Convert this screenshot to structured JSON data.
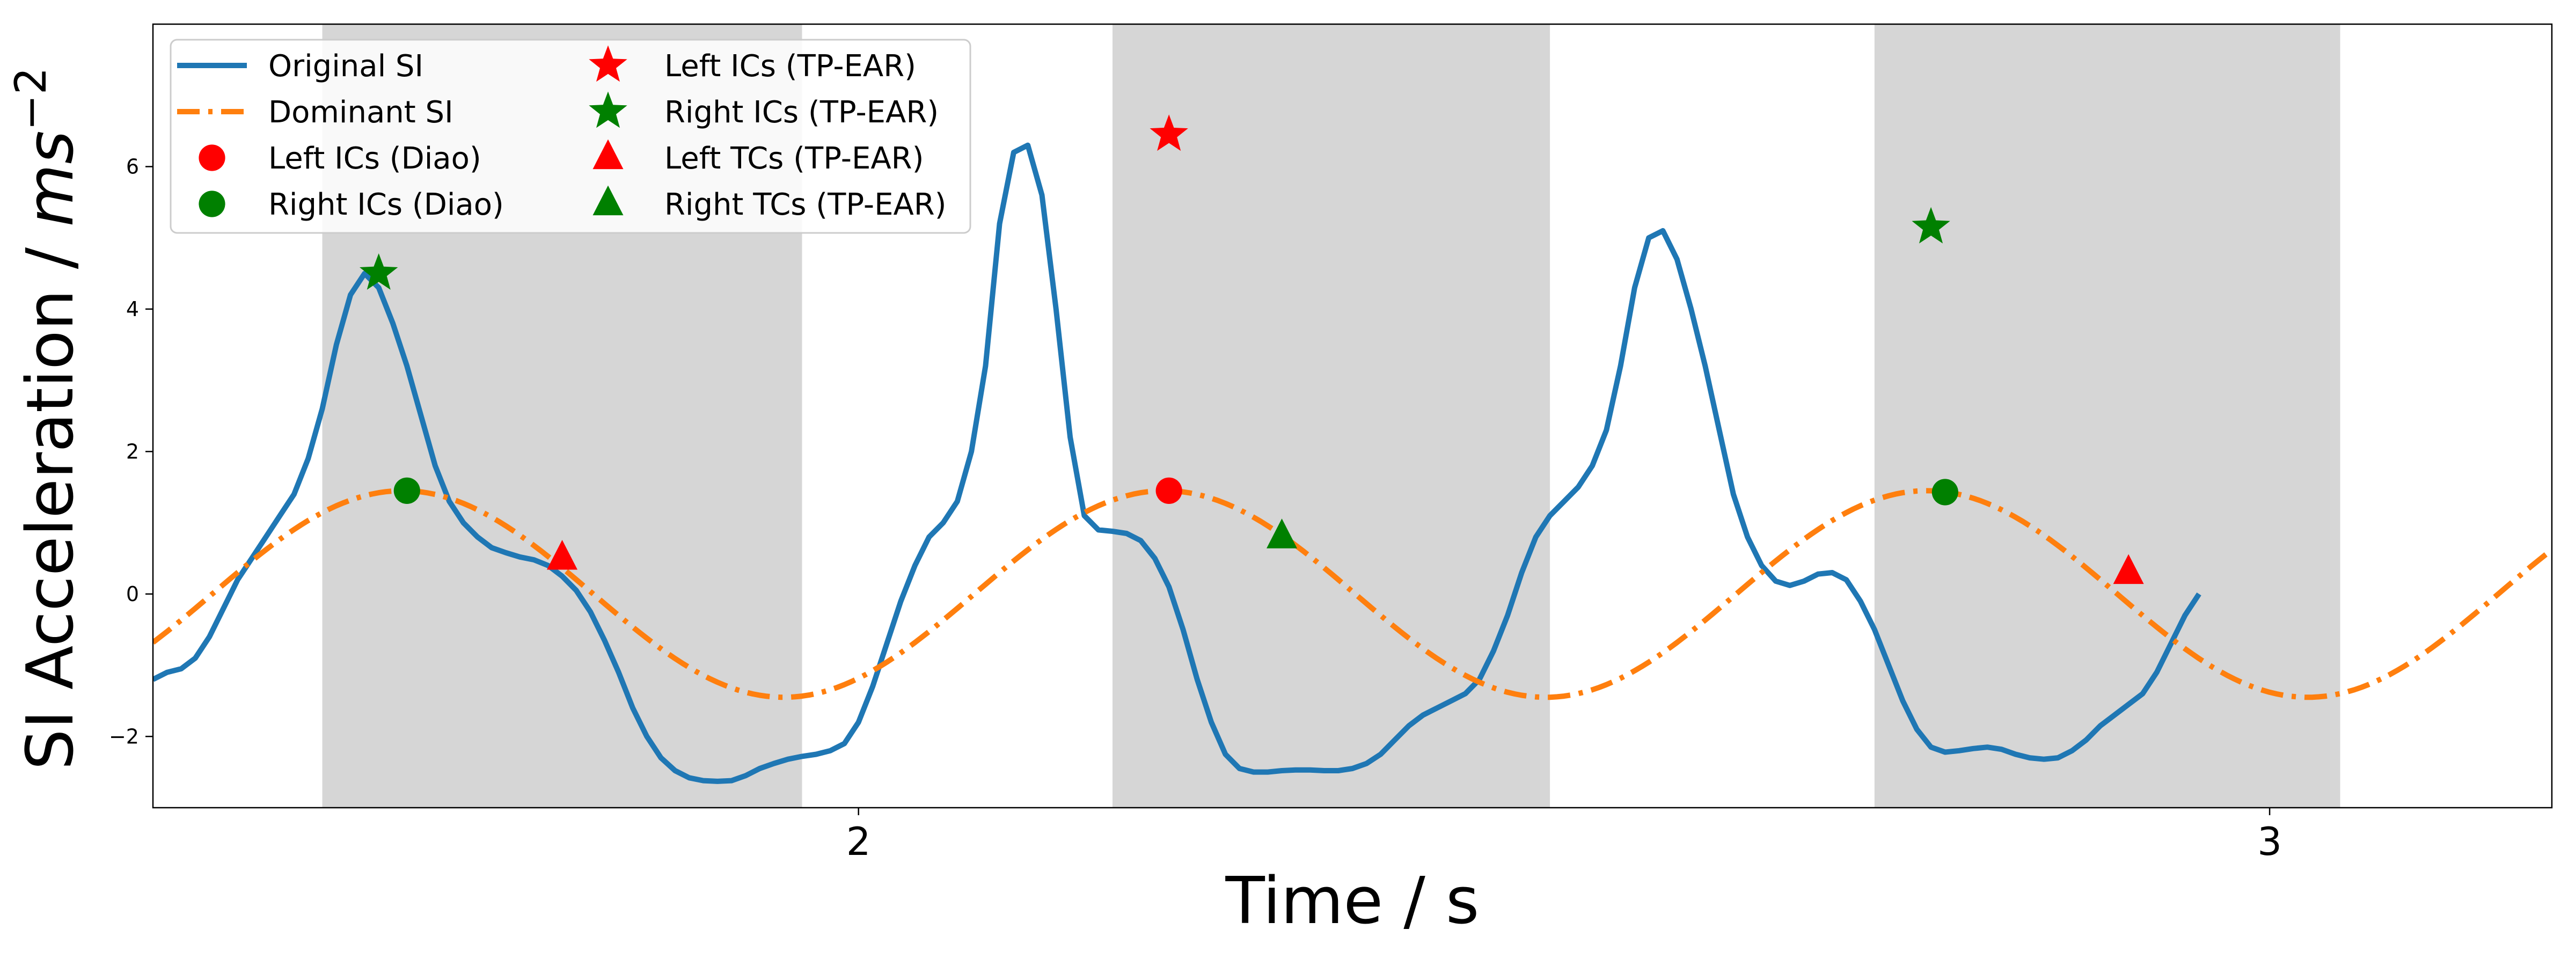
{
  "chart_data": {
    "type": "line",
    "title": "",
    "xlabel": "Time / s",
    "ylabel_main": "SI Acceleration / ",
    "ylabel_unit": "ms",
    "ylabel_exp": "−2",
    "xlim": [
      1.5,
      3.2
    ],
    "ylim": [
      -3.0,
      8.0
    ],
    "x_ticks": [
      2,
      3
    ],
    "y_ticks": [
      -2,
      0,
      2,
      4,
      6
    ],
    "grid": false,
    "legend_position": "top-left",
    "shaded_regions": [
      [
        1.62,
        1.96
      ],
      [
        2.18,
        2.49
      ],
      [
        2.72,
        3.05
      ]
    ],
    "series": [
      {
        "name": "Original SI",
        "kind": "line",
        "color": "#1f77b4",
        "points": [
          [
            1.5,
            -1.2
          ],
          [
            1.51,
            -1.1
          ],
          [
            1.52,
            -1.05
          ],
          [
            1.53,
            -0.9
          ],
          [
            1.54,
            -0.6
          ],
          [
            1.55,
            -0.2
          ],
          [
            1.56,
            0.2
          ],
          [
            1.57,
            0.5
          ],
          [
            1.58,
            0.8
          ],
          [
            1.59,
            1.1
          ],
          [
            1.6,
            1.4
          ],
          [
            1.61,
            1.9
          ],
          [
            1.62,
            2.6
          ],
          [
            1.63,
            3.5
          ],
          [
            1.64,
            4.2
          ],
          [
            1.65,
            4.5
          ],
          [
            1.66,
            4.3
          ],
          [
            1.67,
            3.8
          ],
          [
            1.68,
            3.2
          ],
          [
            1.69,
            2.5
          ],
          [
            1.7,
            1.8
          ],
          [
            1.71,
            1.3
          ],
          [
            1.72,
            1.0
          ],
          [
            1.73,
            0.8
          ],
          [
            1.74,
            0.65
          ],
          [
            1.75,
            0.58
          ],
          [
            1.76,
            0.52
          ],
          [
            1.77,
            0.48
          ],
          [
            1.78,
            0.4
          ],
          [
            1.79,
            0.25
          ],
          [
            1.8,
            0.05
          ],
          [
            1.81,
            -0.25
          ],
          [
            1.82,
            -0.65
          ],
          [
            1.83,
            -1.1
          ],
          [
            1.84,
            -1.6
          ],
          [
            1.85,
            -2.0
          ],
          [
            1.86,
            -2.3
          ],
          [
            1.87,
            -2.48
          ],
          [
            1.88,
            -2.58
          ],
          [
            1.89,
            -2.62
          ],
          [
            1.9,
            -2.63
          ],
          [
            1.91,
            -2.62
          ],
          [
            1.92,
            -2.55
          ],
          [
            1.93,
            -2.45
          ],
          [
            1.94,
            -2.38
          ],
          [
            1.95,
            -2.32
          ],
          [
            1.96,
            -2.28
          ],
          [
            1.97,
            -2.25
          ],
          [
            1.98,
            -2.2
          ],
          [
            1.99,
            -2.1
          ],
          [
            2.0,
            -1.8
          ],
          [
            2.01,
            -1.3
          ],
          [
            2.02,
            -0.7
          ],
          [
            2.03,
            -0.1
          ],
          [
            2.04,
            0.4
          ],
          [
            2.05,
            0.8
          ],
          [
            2.06,
            1.0
          ],
          [
            2.07,
            1.3
          ],
          [
            2.08,
            2.0
          ],
          [
            2.09,
            3.2
          ],
          [
            2.1,
            5.2
          ],
          [
            2.11,
            6.2
          ],
          [
            2.12,
            6.3
          ],
          [
            2.13,
            5.6
          ],
          [
            2.14,
            4.0
          ],
          [
            2.15,
            2.2
          ],
          [
            2.16,
            1.1
          ],
          [
            2.17,
            0.9
          ],
          [
            2.18,
            0.88
          ],
          [
            2.19,
            0.85
          ],
          [
            2.2,
            0.75
          ],
          [
            2.21,
            0.5
          ],
          [
            2.22,
            0.1
          ],
          [
            2.23,
            -0.5
          ],
          [
            2.24,
            -1.2
          ],
          [
            2.25,
            -1.8
          ],
          [
            2.26,
            -2.25
          ],
          [
            2.27,
            -2.45
          ],
          [
            2.28,
            -2.5
          ],
          [
            2.29,
            -2.5
          ],
          [
            2.3,
            -2.48
          ],
          [
            2.31,
            -2.47
          ],
          [
            2.32,
            -2.47
          ],
          [
            2.33,
            -2.48
          ],
          [
            2.34,
            -2.48
          ],
          [
            2.35,
            -2.45
          ],
          [
            2.36,
            -2.38
          ],
          [
            2.37,
            -2.25
          ],
          [
            2.38,
            -2.05
          ],
          [
            2.39,
            -1.85
          ],
          [
            2.4,
            -1.7
          ],
          [
            2.41,
            -1.6
          ],
          [
            2.42,
            -1.5
          ],
          [
            2.43,
            -1.4
          ],
          [
            2.44,
            -1.2
          ],
          [
            2.45,
            -0.8
          ],
          [
            2.46,
            -0.3
          ],
          [
            2.47,
            0.3
          ],
          [
            2.48,
            0.8
          ],
          [
            2.49,
            1.1
          ],
          [
            2.5,
            1.3
          ],
          [
            2.51,
            1.5
          ],
          [
            2.52,
            1.8
          ],
          [
            2.53,
            2.3
          ],
          [
            2.54,
            3.2
          ],
          [
            2.55,
            4.3
          ],
          [
            2.56,
            5.0
          ],
          [
            2.57,
            5.1
          ],
          [
            2.58,
            4.7
          ],
          [
            2.59,
            4.0
          ],
          [
            2.6,
            3.2
          ],
          [
            2.61,
            2.3
          ],
          [
            2.62,
            1.4
          ],
          [
            2.63,
            0.8
          ],
          [
            2.64,
            0.4
          ],
          [
            2.65,
            0.18
          ],
          [
            2.66,
            0.12
          ],
          [
            2.67,
            0.18
          ],
          [
            2.68,
            0.28
          ],
          [
            2.69,
            0.3
          ],
          [
            2.7,
            0.2
          ],
          [
            2.71,
            -0.1
          ],
          [
            2.72,
            -0.5
          ],
          [
            2.73,
            -1.0
          ],
          [
            2.74,
            -1.5
          ],
          [
            2.75,
            -1.9
          ],
          [
            2.76,
            -2.15
          ],
          [
            2.77,
            -2.22
          ],
          [
            2.78,
            -2.2
          ],
          [
            2.79,
            -2.17
          ],
          [
            2.8,
            -2.15
          ],
          [
            2.81,
            -2.18
          ],
          [
            2.82,
            -2.25
          ],
          [
            2.83,
            -2.3
          ],
          [
            2.84,
            -2.32
          ],
          [
            2.85,
            -2.3
          ],
          [
            2.86,
            -2.2
          ],
          [
            2.87,
            -2.05
          ],
          [
            2.88,
            -1.85
          ],
          [
            2.89,
            -1.7
          ],
          [
            2.9,
            -1.55
          ],
          [
            2.91,
            -1.4
          ],
          [
            2.92,
            -1.1
          ],
          [
            2.93,
            -0.7
          ],
          [
            2.94,
            -0.3
          ],
          [
            2.95,
            0.0
          ]
        ]
      },
      {
        "name": "Dominant SI",
        "kind": "line",
        "dashed": true,
        "color": "#ff7f0e",
        "sine": {
          "amplitude": 1.45,
          "period": 0.54,
          "peak_x": 1.677,
          "x_end": 3.2
        }
      },
      {
        "name": "Left ICs (Diao)",
        "kind": "marker",
        "marker": "circle",
        "color": "#ff0000",
        "points": [
          [
            2.22,
            1.45
          ]
        ]
      },
      {
        "name": "Right ICs (Diao)",
        "kind": "marker",
        "marker": "circle",
        "color": "#008000",
        "points": [
          [
            1.68,
            1.45
          ],
          [
            2.77,
            1.43
          ]
        ]
      },
      {
        "name": "Left ICs (TP-EAR)",
        "kind": "marker",
        "marker": "star",
        "color": "#ff0000",
        "points": [
          [
            2.22,
            6.45
          ]
        ]
      },
      {
        "name": "Right ICs (TP-EAR)",
        "kind": "marker",
        "marker": "star",
        "color": "#008000",
        "points": [
          [
            1.66,
            4.5
          ],
          [
            2.76,
            5.15
          ]
        ]
      },
      {
        "name": "Left TCs (TP-EAR)",
        "kind": "marker",
        "marker": "triangle",
        "color": "#ff0000",
        "points": [
          [
            1.79,
            0.5
          ],
          [
            2.9,
            0.3
          ]
        ]
      },
      {
        "name": "Right TCs (TP-EAR)",
        "kind": "marker",
        "marker": "triangle",
        "color": "#008000",
        "points": [
          [
            2.3,
            0.8
          ]
        ]
      }
    ]
  }
}
